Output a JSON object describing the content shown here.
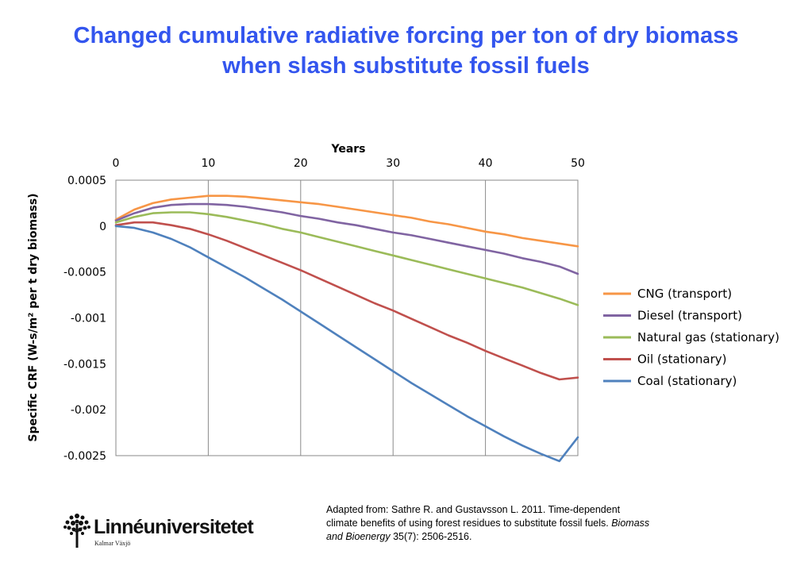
{
  "slide": {
    "title_line1": "Changed cumulative radiative forcing per ton of dry biomass",
    "title_line2": "when slash substitute fossil fuels"
  },
  "citation": {
    "line1": "Adapted from: Sathre R. and Gustavsson L. 2011. Time-dependent",
    "line2": "climate benefits of using forest residues to substitute fossil fuels.",
    "journal": "Biomass",
    "line3_journal": "and Bioenergy",
    "line3_rest": "35(7): 2506-2516."
  },
  "logo": {
    "name": "Linnéuniversitetet",
    "subtitle": "Kalmar Växjö"
  },
  "chart_data": {
    "type": "line",
    "title": "",
    "xlabel": "Years",
    "ylabel": "Specific CRF (W-s/m² per t dry biomass)",
    "x_axis_position": "top",
    "xlim": [
      0,
      50
    ],
    "ylim": [
      -0.0025,
      0.0005
    ],
    "xticks": [
      "0",
      "10",
      "20",
      "30",
      "40",
      "50"
    ],
    "yticks": [
      "0.0005",
      "0",
      "-0.0005",
      "-0.001",
      "-0.0015",
      "-0.002",
      "-0.0025"
    ],
    "grid": "vertical",
    "legend_position": "right",
    "x": [
      0,
      2,
      4,
      6,
      8,
      10,
      12,
      14,
      16,
      18,
      20,
      22,
      24,
      26,
      28,
      30,
      32,
      34,
      36,
      38,
      40,
      42,
      44,
      46,
      48,
      50
    ],
    "series": [
      {
        "name": "CNG (transport)",
        "color": "#f79646",
        "values": [
          7e-05,
          0.00018,
          0.00025,
          0.00029,
          0.00031,
          0.00033,
          0.00033,
          0.00032,
          0.0003,
          0.00028,
          0.00026,
          0.00024,
          0.00021,
          0.00018,
          0.00015,
          0.00012,
          9e-05,
          5e-05,
          2e-05,
          -2e-05,
          -6e-05,
          -9e-05,
          -0.00013,
          -0.00016,
          -0.00019,
          -0.00022
        ]
      },
      {
        "name": "Diesel (transport)",
        "color": "#8064a2",
        "values": [
          6e-05,
          0.00014,
          0.0002,
          0.00023,
          0.00024,
          0.00024,
          0.00023,
          0.00021,
          0.00018,
          0.00015,
          0.00011,
          8e-05,
          4e-05,
          1e-05,
          -3e-05,
          -7e-05,
          -0.0001,
          -0.00014,
          -0.00018,
          -0.00022,
          -0.00026,
          -0.0003,
          -0.00035,
          -0.00039,
          -0.00044,
          -0.00052
        ]
      },
      {
        "name": "Natural gas (stationary)",
        "color": "#9bbb59",
        "values": [
          4e-05,
          0.0001,
          0.00014,
          0.00015,
          0.00015,
          0.00013,
          0.0001,
          6e-05,
          2e-05,
          -3e-05,
          -7e-05,
          -0.00012,
          -0.00017,
          -0.00022,
          -0.00027,
          -0.00032,
          -0.00037,
          -0.00042,
          -0.00047,
          -0.00052,
          -0.00057,
          -0.00062,
          -0.00067,
          -0.00073,
          -0.00079,
          -0.00086
        ]
      },
      {
        "name": "Oil (stationary)",
        "color": "#c0504d",
        "values": [
          1e-05,
          4e-05,
          4e-05,
          1e-05,
          -3e-05,
          -9e-05,
          -0.00016,
          -0.00024,
          -0.00032,
          -0.0004,
          -0.00048,
          -0.00057,
          -0.00066,
          -0.00075,
          -0.00084,
          -0.00092,
          -0.00101,
          -0.0011,
          -0.00119,
          -0.00127,
          -0.00136,
          -0.00144,
          -0.00152,
          -0.0016,
          -0.00167,
          -0.00165
        ]
      },
      {
        "name": "Coal (stationary)",
        "color": "#4f81bd",
        "values": [
          0.0,
          -2e-05,
          -7e-05,
          -0.00014,
          -0.00023,
          -0.00034,
          -0.00045,
          -0.00056,
          -0.00068,
          -0.0008,
          -0.00093,
          -0.00106,
          -0.00119,
          -0.00132,
          -0.00145,
          -0.00158,
          -0.00171,
          -0.00183,
          -0.00195,
          -0.00207,
          -0.00218,
          -0.00229,
          -0.00239,
          -0.00248,
          -0.00256,
          -0.0023
        ]
      }
    ]
  }
}
